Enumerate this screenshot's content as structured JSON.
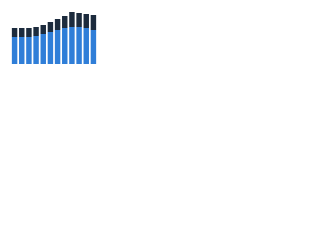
{
  "chart_data": {
    "type": "stacked-bar",
    "categories": [
      null,
      null,
      null,
      null,
      null,
      null,
      null,
      null,
      null,
      null,
      null,
      null
    ],
    "series": [
      {
        "color": "#2f7ed8",
        "values": [
          27,
          27,
          27,
          28,
          30,
          32,
          34,
          36,
          37,
          37,
          36,
          34
        ]
      },
      {
        "color": "#1c2b3d",
        "values": [
          9,
          9,
          9,
          9,
          9,
          10,
          11,
          12,
          15,
          14,
          14,
          15
        ]
      }
    ],
    "ylim": [
      0,
      56
    ]
  }
}
